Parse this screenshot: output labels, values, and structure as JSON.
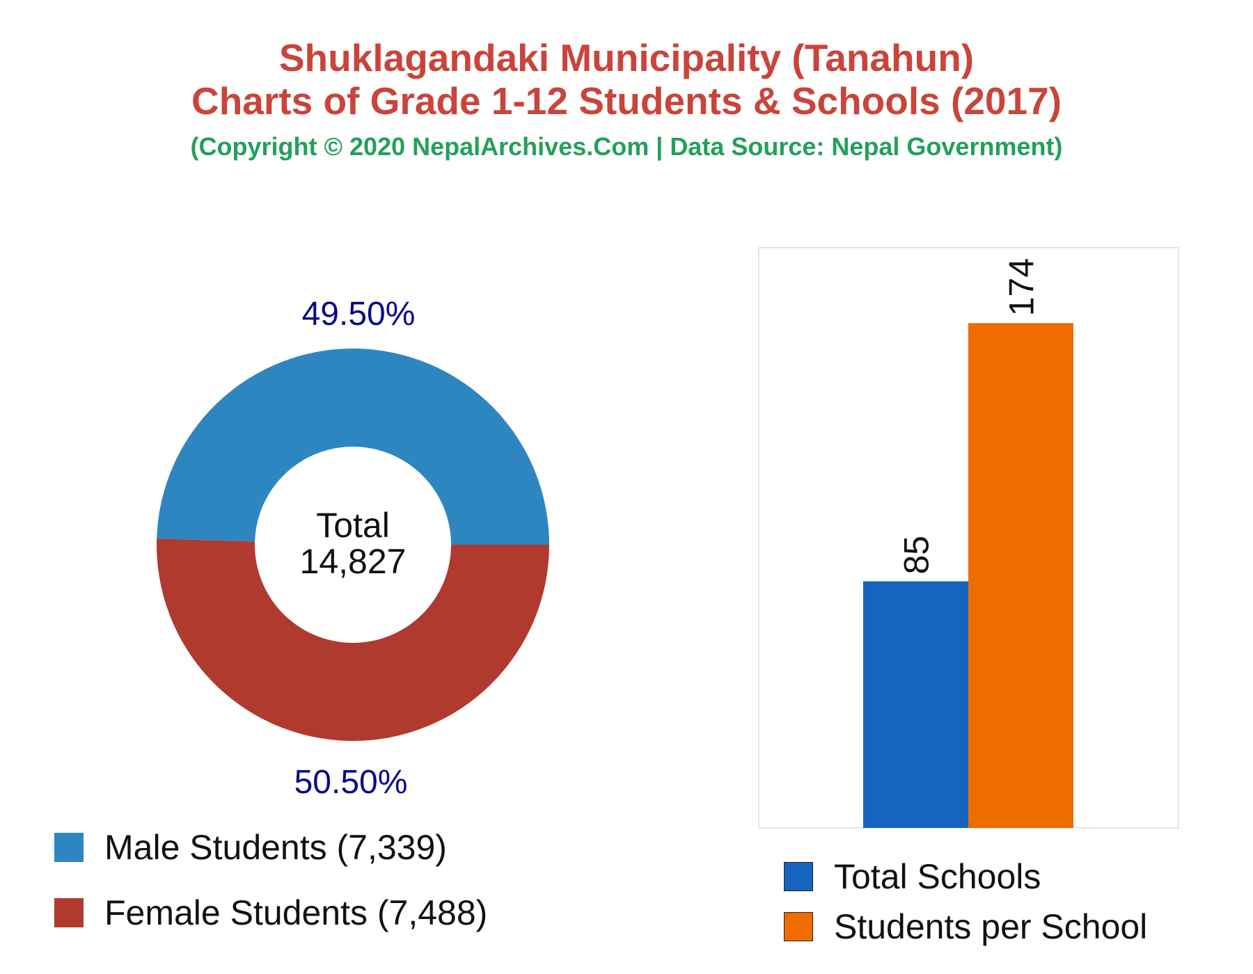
{
  "header": {
    "title_line1": "Shuklagandaki Municipality (Tanahun)",
    "title_line2": "Charts of Grade 1-12 Students & Schools (2017)",
    "subtitle": "(Copyright © 2020 NepalArchives.Com | Data Source: Nepal Government)"
  },
  "chart_data": [
    {
      "type": "pie",
      "variant": "donut",
      "center_label": "Total",
      "center_value": "14,827",
      "total": 14827,
      "slices": [
        {
          "label": "Male Students (7,339)",
          "value": 7339,
          "percent_label": "49.50%",
          "color": "#2e86c1"
        },
        {
          "label": "Female Students (7,488)",
          "value": 7488,
          "percent_label": "50.50%",
          "color": "#b03a2e"
        }
      ],
      "percent_label_color": "#0a0a8a",
      "legend_position": "bottom"
    },
    {
      "type": "bar",
      "series": [
        {
          "name": "Total Schools",
          "value": 85,
          "color": "#1565c0"
        },
        {
          "name": "Students per School",
          "value": 174,
          "color": "#ef6c00"
        }
      ],
      "ylim": [
        0,
        200
      ],
      "grid": false,
      "data_label_rotation": "vertical",
      "legend_position": "bottom"
    }
  ]
}
